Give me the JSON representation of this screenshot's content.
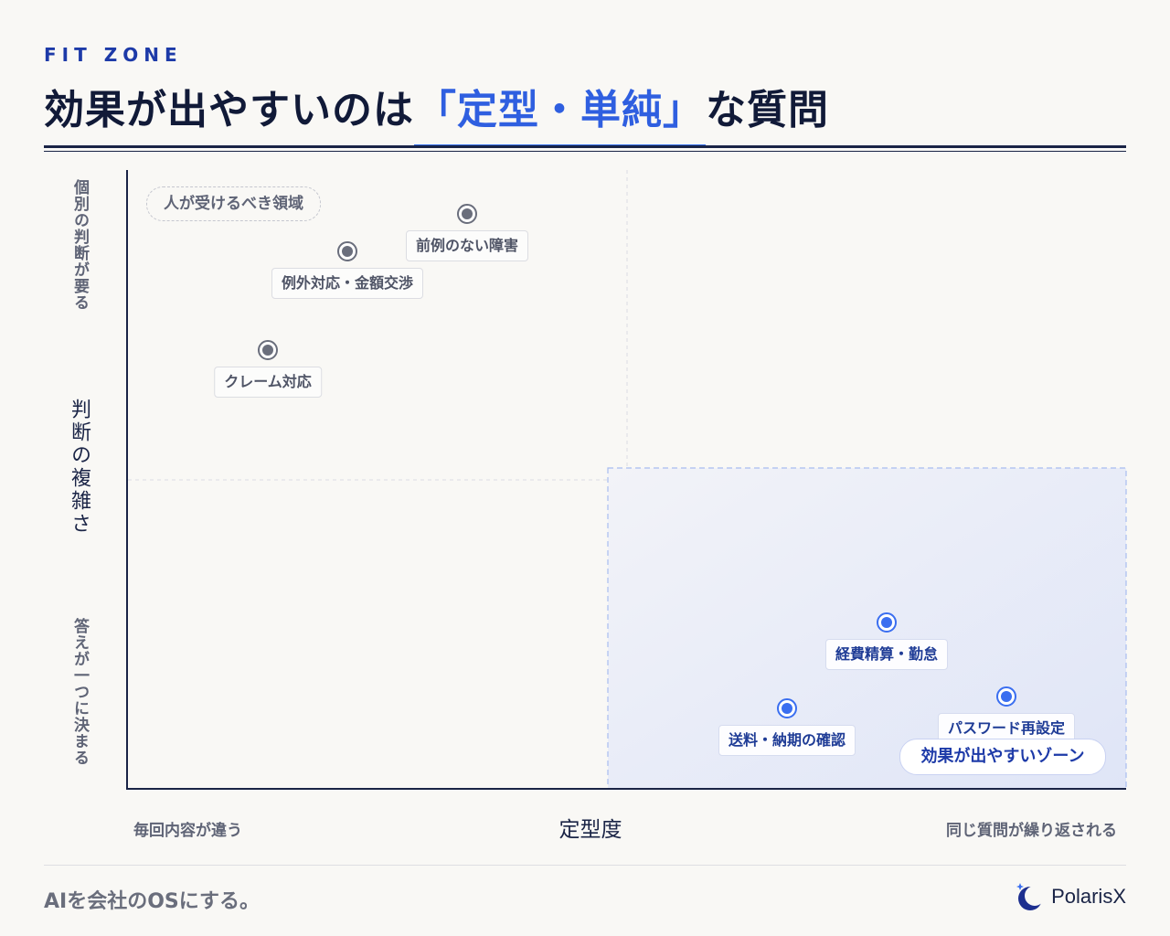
{
  "header": {
    "eyebrow": "FIT ZONE",
    "title_prefix": "効果が出やすいのは",
    "title_highlight": "「定型・単純」",
    "title_suffix": "な質問"
  },
  "axes": {
    "y_top": "個別の判断が要る",
    "y_title": "判断の複雑さ",
    "y_bottom": "答えが一つに決まる",
    "x_left": "毎回内容が違う",
    "x_title": "定型度",
    "x_right": "同じ質問が繰り返される"
  },
  "zones": {
    "human_zone": "人が受けるべき領域",
    "fit_zone": "効果が出やすいゾーン"
  },
  "points": [
    {
      "label": "前例のない障害",
      "kind": "human"
    },
    {
      "label": "例外対応・金額交渉",
      "kind": "human"
    },
    {
      "label": "クレーム対応",
      "kind": "human"
    },
    {
      "label": "経費精算・勤怠",
      "kind": "fit"
    },
    {
      "label": "パスワード再設定",
      "kind": "fit"
    },
    {
      "label": "送料・納期の確認",
      "kind": "fit"
    }
  ],
  "colors": {
    "accent": "#2f6bea",
    "navy": "#1a2446",
    "human_dot": "#6a6e7c",
    "fit_dot": "#3a6ef0"
  },
  "footer": {
    "slogan": "AIを会社のOSにする。",
    "brand": "PolarisX",
    "brand_icon": "moon-star-icon"
  }
}
